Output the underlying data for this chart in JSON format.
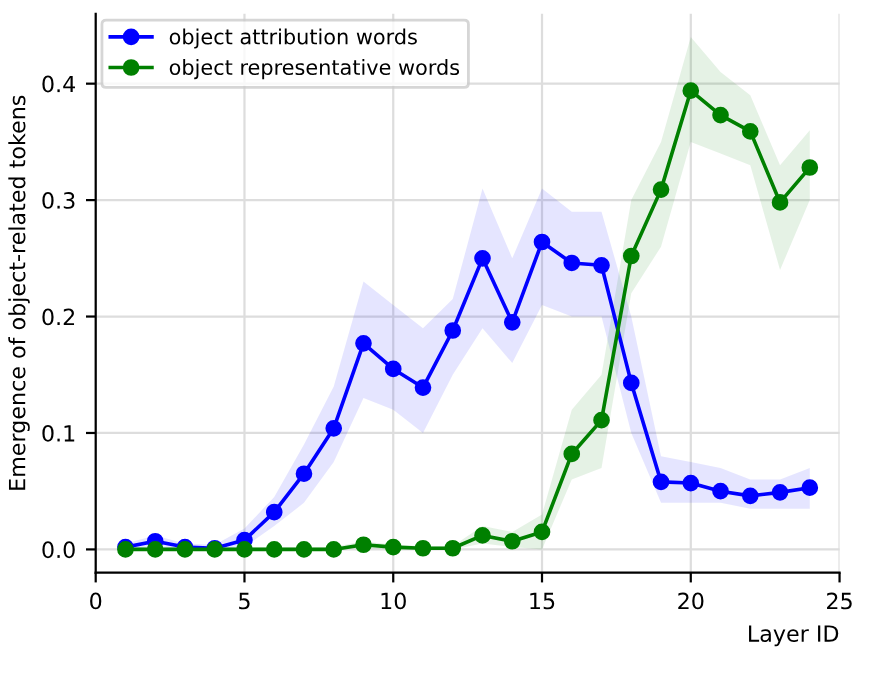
{
  "chart_data": {
    "type": "line",
    "xlabel": "Layer ID",
    "ylabel": "Emergence of object-related tokens",
    "x": [
      1,
      2,
      3,
      4,
      5,
      6,
      7,
      8,
      9,
      10,
      11,
      12,
      13,
      14,
      15,
      16,
      17,
      18,
      19,
      20,
      21,
      22,
      23,
      24
    ],
    "series": [
      {
        "name": "object attribution words",
        "color": "#0000ff",
        "values": [
          0.002,
          0.007,
          0.002,
          0.001,
          0.008,
          0.032,
          0.065,
          0.104,
          0.177,
          0.155,
          0.139,
          0.188,
          0.25,
          0.195,
          0.264,
          0.246,
          0.244,
          0.143,
          0.058,
          0.057,
          0.05,
          0.046,
          0.049,
          0.053
        ],
        "lower": [
          0,
          0.002,
          0,
          0,
          0.002,
          0.02,
          0.04,
          0.075,
          0.13,
          0.12,
          0.1,
          0.15,
          0.19,
          0.16,
          0.21,
          0.2,
          0.2,
          0.1,
          0.04,
          0.04,
          0.04,
          0.035,
          0.035,
          0.035
        ],
        "upper": [
          0.005,
          0.012,
          0.005,
          0.004,
          0.018,
          0.045,
          0.09,
          0.14,
          0.23,
          0.21,
          0.19,
          0.215,
          0.31,
          0.25,
          0.31,
          0.29,
          0.29,
          0.2,
          0.08,
          0.075,
          0.07,
          0.06,
          0.06,
          0.07
        ]
      },
      {
        "name": "object representative words",
        "color": "#008000",
        "values": [
          0,
          0,
          0,
          0,
          0,
          0,
          0,
          0,
          0.004,
          0.002,
          0.001,
          0.001,
          0.012,
          0.007,
          0.015,
          0.082,
          0.111,
          0.252,
          0.309,
          0.394,
          0.373,
          0.359,
          0.298,
          0.328
        ],
        "lower": [
          0,
          0,
          0,
          0,
          0,
          0,
          0,
          0,
          0.001,
          0,
          0,
          0,
          0.005,
          0.002,
          0,
          0.06,
          0.07,
          0.22,
          0.26,
          0.35,
          0.34,
          0.33,
          0.24,
          0.3
        ],
        "upper": [
          0.002,
          0.002,
          0.002,
          0.002,
          0.002,
          0.002,
          0.002,
          0.002,
          0.007,
          0.004,
          0.003,
          0.003,
          0.02,
          0.015,
          0.03,
          0.12,
          0.15,
          0.3,
          0.35,
          0.44,
          0.41,
          0.39,
          0.33,
          0.36
        ]
      }
    ],
    "xlim": [
      0,
      25
    ],
    "xticks": [
      0,
      5,
      10,
      15,
      20,
      25
    ],
    "ylim": [
      -0.02,
      0.46
    ],
    "yticks": [
      {
        "value": 0,
        "label": "0.0"
      },
      {
        "value": 0.1,
        "label": "0.1"
      },
      {
        "value": 0.2,
        "label": "0.2"
      },
      {
        "value": 0.3,
        "label": "0.3"
      },
      {
        "value": 0.4,
        "label": "0.4"
      }
    ],
    "grid": true,
    "legend": "top left",
    "marker": "circle",
    "line_style": "solid"
  }
}
